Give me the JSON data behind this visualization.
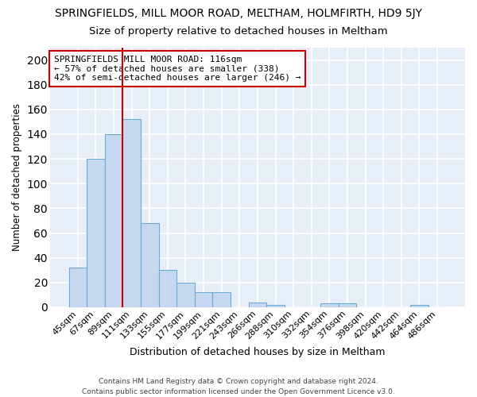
{
  "title": "SPRINGFIELDS, MILL MOOR ROAD, MELTHAM, HOLMFIRTH, HD9 5JY",
  "subtitle": "Size of property relative to detached houses in Meltham",
  "xlabel": "Distribution of detached houses by size in Meltham",
  "ylabel": "Number of detached properties",
  "categories": [
    "45sqm",
    "67sqm",
    "89sqm",
    "111sqm",
    "133sqm",
    "155sqm",
    "177sqm",
    "199sqm",
    "221sqm",
    "243sqm",
    "266sqm",
    "288sqm",
    "310sqm",
    "332sqm",
    "354sqm",
    "376sqm",
    "398sqm",
    "420sqm",
    "442sqm",
    "464sqm",
    "486sqm"
  ],
  "values": [
    32,
    120,
    140,
    152,
    68,
    30,
    20,
    12,
    12,
    0,
    4,
    2,
    0,
    0,
    3,
    3,
    0,
    0,
    0,
    2,
    0
  ],
  "bar_color": "#c5d8f0",
  "bar_edge_color": "#6aaad4",
  "vline_color": "#cc0000",
  "vline_x_index": 3,
  "ann_line1": "SPRINGFIELDS MILL MOOR ROAD: 116sqm",
  "ann_line2": "← 57% of detached houses are smaller (338)",
  "ann_line3": "42% of semi-detached houses are larger (246) →",
  "footer": "Contains HM Land Registry data © Crown copyright and database right 2024.\nContains public sector information licensed under the Open Government Licence v3.0.",
  "ylim": [
    0,
    210
  ],
  "yticks": [
    0,
    20,
    40,
    60,
    80,
    100,
    120,
    140,
    160,
    180,
    200
  ],
  "plot_bg_color": "#e8eef8",
  "fig_bg_color": "#ffffff",
  "grid_color": "#ffffff",
  "title_fontsize": 10,
  "subtitle_fontsize": 9.5,
  "xlabel_fontsize": 9,
  "ylabel_fontsize": 8.5,
  "tick_fontsize": 8,
  "ann_fontsize": 8,
  "footer_fontsize": 6.5
}
